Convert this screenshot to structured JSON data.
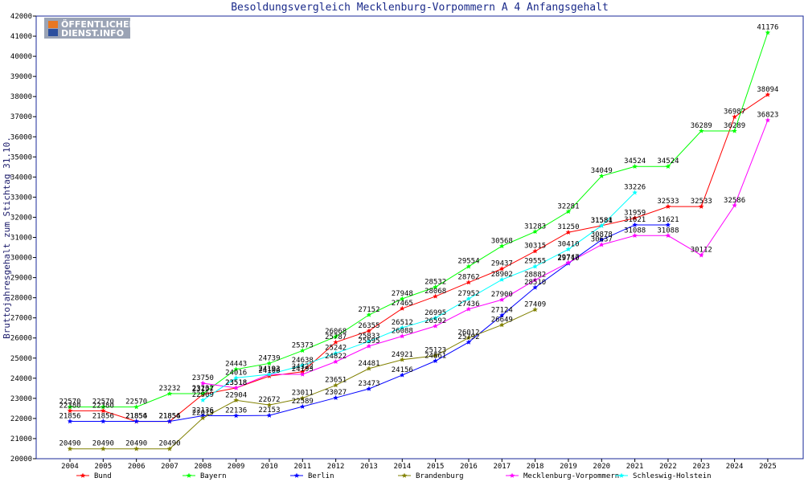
{
  "logo": {
    "line1": "ÖFFENTLICHER",
    "line2": "DIENST.INFO"
  },
  "chart_data": {
    "type": "line",
    "title": "Besoldungsvergleich Mecklenburg-Vorpommern A 4 Anfangsgehalt",
    "ylabel": "Bruttojahresgehalt zum Stichtag 31.10.",
    "xlabel": "",
    "ylim": [
      20000,
      42000
    ],
    "yticks": [
      20000,
      21000,
      22000,
      23000,
      24000,
      25000,
      26000,
      27000,
      28000,
      29000,
      30000,
      31000,
      32000,
      33000,
      34000,
      35000,
      36000,
      37000,
      38000,
      39000,
      40000,
      41000,
      42000
    ],
    "categories": [
      "2004",
      "2005",
      "2006",
      "2007",
      "2008",
      "2009",
      "2010",
      "2011",
      "2012",
      "2013",
      "2014",
      "2015",
      "2016",
      "2017",
      "2018",
      "2019",
      "2020",
      "2021",
      "2022",
      "2023",
      "2024",
      "2025"
    ],
    "grid": false,
    "legend_position": "bottom",
    "series": [
      {
        "name": "Bund",
        "color": "#ff0000",
        "values": [
          22380,
          22380,
          21854,
          21854,
          23197,
          23518,
          24106,
          24322,
          25787,
          26355,
          27465,
          28068,
          28762,
          29437,
          30315,
          31250,
          31584,
          31959,
          32533,
          32533,
          36987,
          38094
        ]
      },
      {
        "name": "Bayern",
        "color": "#00ff00",
        "values": [
          22570,
          22570,
          22570,
          23232,
          23232,
          24443,
          24739,
          25373,
          26068,
          27152,
          27948,
          28532,
          29554,
          30568,
          31283,
          32281,
          34049,
          34524,
          34524,
          36289,
          36289,
          41176
        ]
      },
      {
        "name": "Berlin",
        "color": "#0000ff",
        "values": [
          21856,
          21856,
          21856,
          21856,
          22136,
          22136,
          22153,
          22589,
          23027,
          23473,
          24156,
          24861,
          25792,
          27124,
          28510,
          29710,
          30878,
          31621,
          31621,
          null,
          null,
          null
        ]
      },
      {
        "name": "Brandenburg",
        "color": "#808000",
        "values": [
          20490,
          20490,
          20490,
          20490,
          22019,
          22904,
          22672,
          23011,
          23651,
          24481,
          24921,
          25123,
          26012,
          26649,
          27409,
          null,
          null,
          null,
          null,
          null,
          null,
          null
        ]
      },
      {
        "name": "Mecklenburg-Vorpommern",
        "color": "#ff00ff",
        "values": [
          null,
          null,
          null,
          null,
          23750,
          23518,
          24193,
          24193,
          24822,
          25595,
          26088,
          26592,
          27436,
          27900,
          28882,
          29747,
          30637,
          31088,
          31088,
          30112,
          32586,
          36823
        ]
      },
      {
        "name": "Schleswig-Holstein",
        "color": "#00ffff",
        "values": [
          null,
          null,
          null,
          null,
          22909,
          24016,
          24193,
          24638,
          25242,
          25833,
          26512,
          26995,
          27952,
          28902,
          29555,
          30410,
          31581,
          33226,
          null,
          null,
          null,
          null
        ]
      }
    ],
    "point_labels": {
      "Bund": [
        "22380",
        "22380",
        "21854",
        "21854",
        "23197",
        "23518",
        "24106",
        "24322",
        "25787",
        "26355",
        "27465",
        "28068",
        "28762",
        "29437",
        "30315",
        "31250",
        "31584",
        "31959",
        "32533",
        "32533",
        "36987",
        "38094"
      ],
      "Bayern": [
        "22570",
        "22570",
        "22570",
        "23232",
        "23232",
        "24443",
        "24739",
        "25373",
        "26068",
        "27152",
        "27948",
        "28532",
        "29554",
        "30568",
        "31283",
        "32281",
        "34049",
        "34524",
        "34524",
        "36289",
        "36289",
        "41176"
      ],
      "Berlin": [
        "21856",
        "21856",
        "21856",
        "21856",
        "22136",
        "22136",
        "22153",
        "22589",
        "23027",
        "23473",
        "24156",
        "24861",
        "25792",
        "27124",
        "28510",
        "29710",
        "30878",
        "31621",
        "31621",
        "",
        "",
        ""
      ],
      "Brandenburg": [
        "20490",
        "20490",
        "20490",
        "20490",
        "22019",
        "22904",
        "22672",
        "23011",
        "23651",
        "24481",
        "24921",
        "25123",
        "26012",
        "26649",
        "27409",
        "",
        "",
        "",
        "",
        "",
        "",
        ""
      ],
      "Mecklenburg-Vorpommern": [
        "",
        "",
        "",
        "",
        "23750",
        "23518",
        "24193",
        "24193",
        "24822",
        "25595",
        "26088",
        "26592",
        "27436",
        "27900",
        "28882",
        "29747",
        "30637",
        "31088",
        "31088",
        "30112",
        "32586",
        "36823"
      ],
      "Schleswig-Holstein": [
        "",
        "",
        "",
        "",
        "22909",
        "24016",
        "24193",
        "24638",
        "25242",
        "25833",
        "26512",
        "26995",
        "27952",
        "28902",
        "29555",
        "30410",
        "31581",
        "33226",
        "",
        "",
        "",
        ""
      ]
    }
  }
}
